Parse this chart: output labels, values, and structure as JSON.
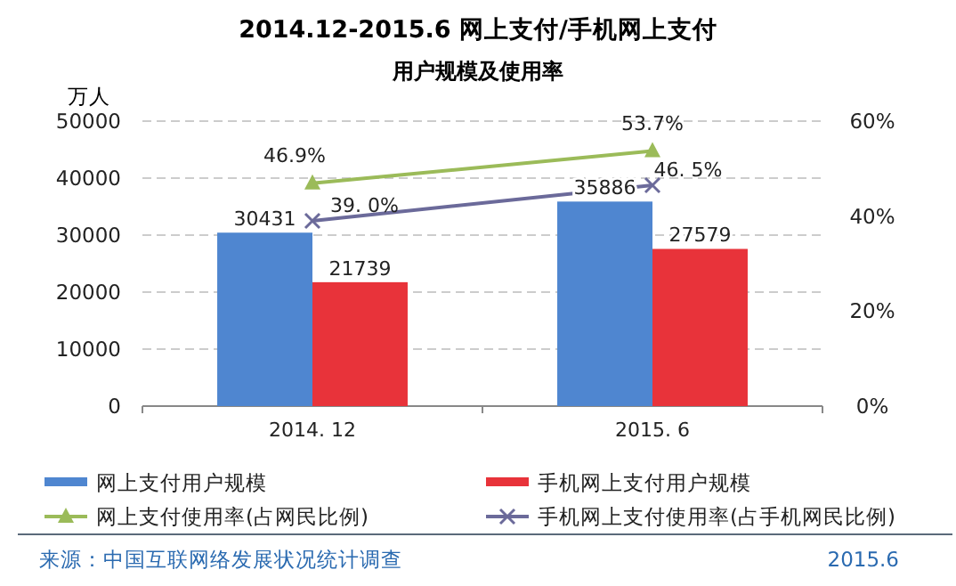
{
  "chart_data": {
    "type": "bar",
    "title": "2014.12-2015.6 网上支付/手机网上支付",
    "subtitle": "用户规模及使用率",
    "ylabel": "万人",
    "categories": [
      "2014. 12",
      "2015. 6"
    ],
    "series": [
      {
        "name": "网上支付用户规模",
        "color": "#4f86d0",
        "values": [
          30431,
          35886
        ],
        "value_labels": [
          "30431",
          "35886"
        ]
      },
      {
        "name": "手机网上支付用户规模",
        "color": "#e8333a",
        "values": [
          21739,
          27579
        ],
        "value_labels": [
          "21739",
          "27579"
        ]
      },
      {
        "name": "网上支付使用率(占网民比例)",
        "type": "line",
        "axis": "y2",
        "marker": "triangle",
        "color": "#9bbb59",
        "values": [
          46.9,
          53.7
        ],
        "value_labels": [
          "46.9%",
          "53.7%"
        ]
      },
      {
        "name": "手机网上支付使用率(占手机网民比例)",
        "type": "line",
        "axis": "y2",
        "marker": "cross",
        "color": "#6b6a9a",
        "values": [
          39.0,
          46.5
        ],
        "value_labels": [
          "39. 0%",
          "46. 5%"
        ]
      }
    ],
    "ylim": [
      0,
      50000
    ],
    "yticks": [
      0,
      10000,
      20000,
      30000,
      40000,
      50000
    ],
    "y2lim": [
      0,
      60
    ],
    "y2ticks": [
      {
        "value": 0,
        "label": "0%"
      },
      {
        "value": 20,
        "label": "20%"
      },
      {
        "value": 40,
        "label": "40%"
      },
      {
        "value": 60,
        "label": "60%"
      }
    ],
    "grid": "y",
    "legend": "bottom",
    "annotations": [
      "来源：中国互联网络发展状况统计调查",
      "2015.6"
    ]
  }
}
